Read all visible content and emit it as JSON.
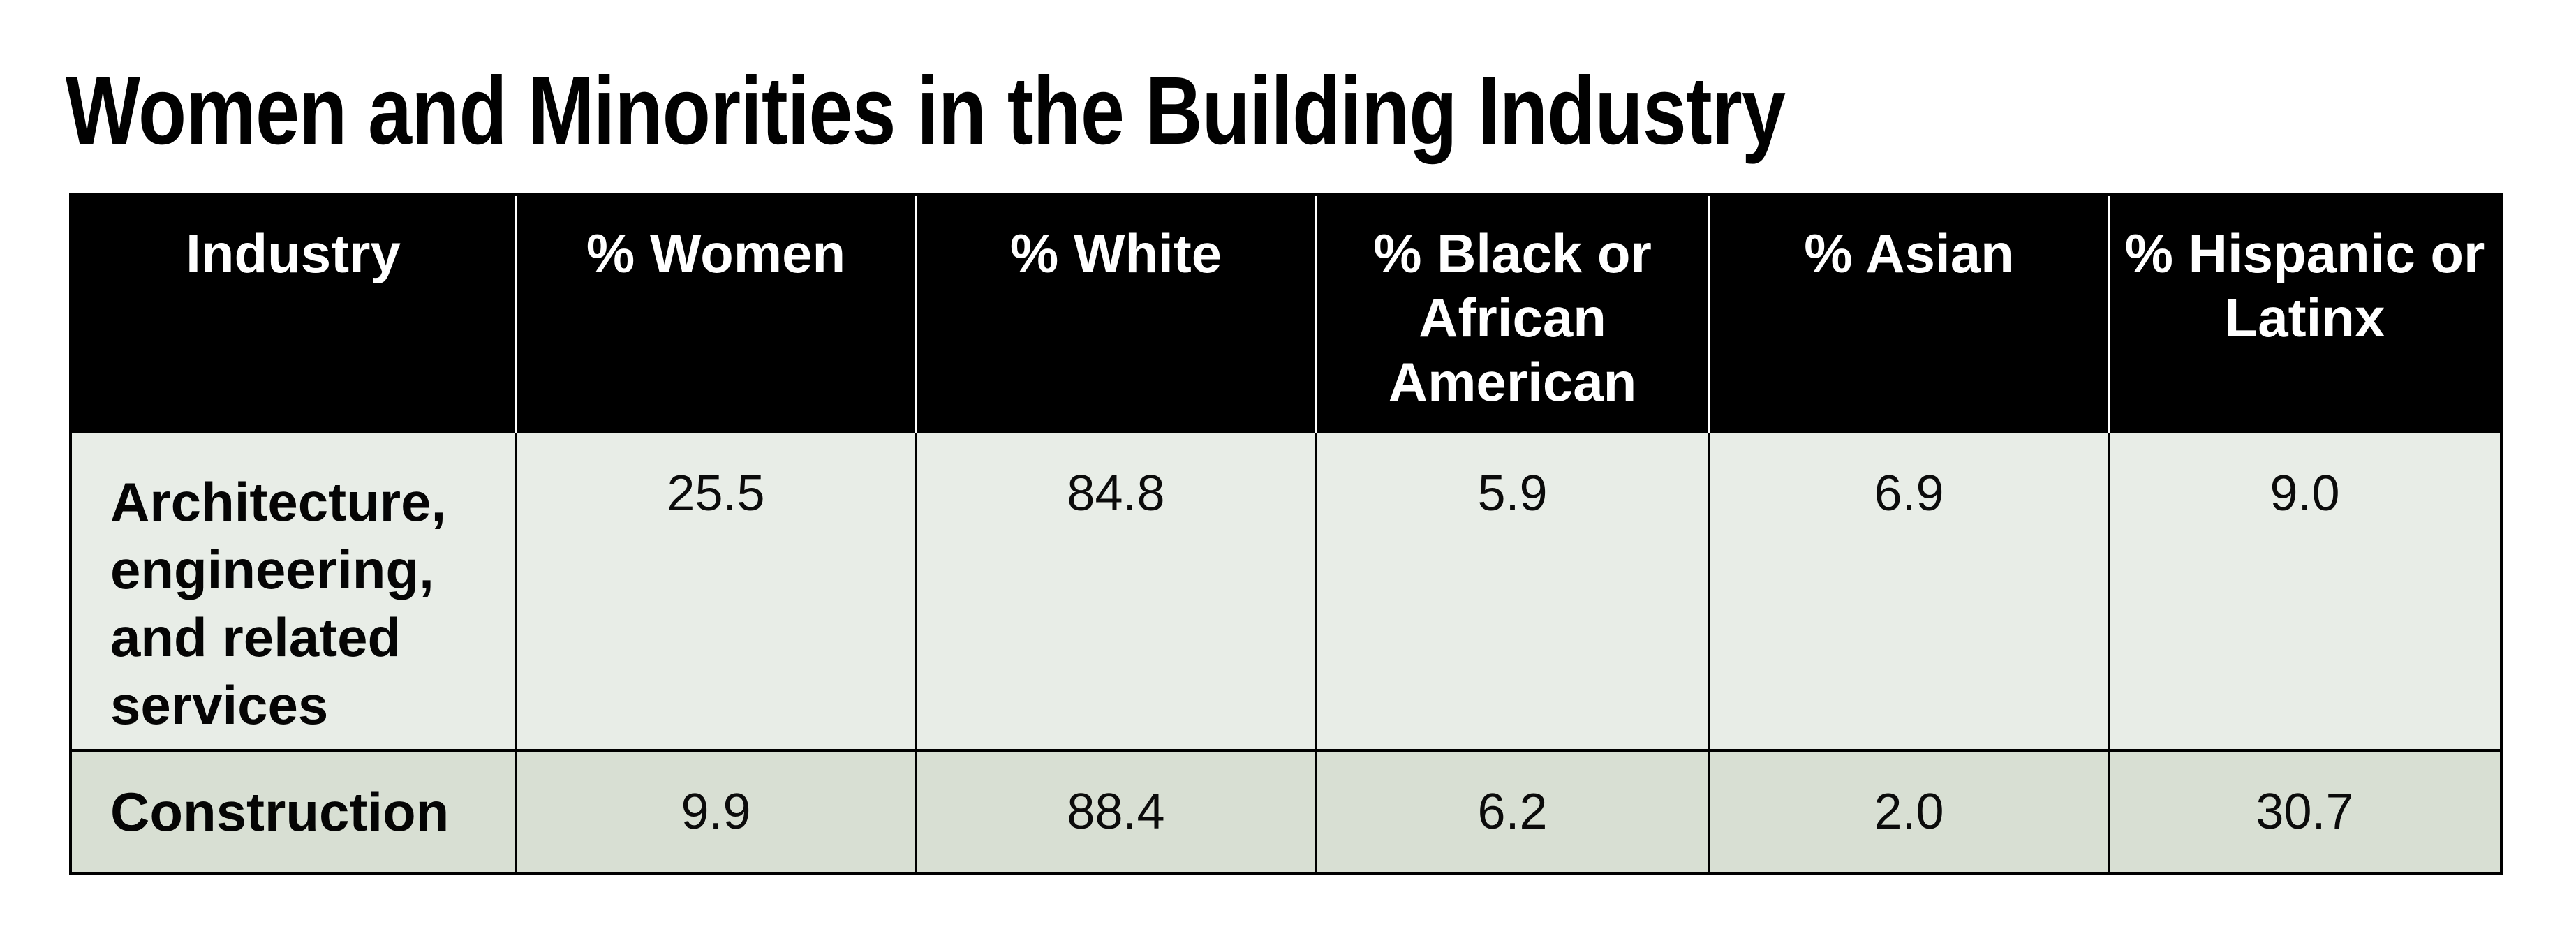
{
  "title": "Women and Minorities in the Building Industry",
  "table": {
    "columns": [
      "Industry",
      "% Women",
      "% White",
      "% Black or African American",
      "% Asian",
      "% Hispanic or Latinx"
    ],
    "rows": [
      {
        "industry": "Architecture, engineering, and related services",
        "values": [
          "25.5",
          "84.8",
          "5.9",
          "6.9",
          "9.0"
        ]
      },
      {
        "industry": "Construction",
        "values": [
          "9.9",
          "88.4",
          "6.2",
          "2.0",
          "30.7"
        ]
      }
    ],
    "colors": {
      "header_bg": "#000000",
      "header_text": "#ffffff",
      "header_divider": "#ffffff",
      "row1_bg": "#e8ede7",
      "row2_bg": "#d8dfd3",
      "grid_line": "#000000",
      "title_text": "#010101"
    }
  }
}
